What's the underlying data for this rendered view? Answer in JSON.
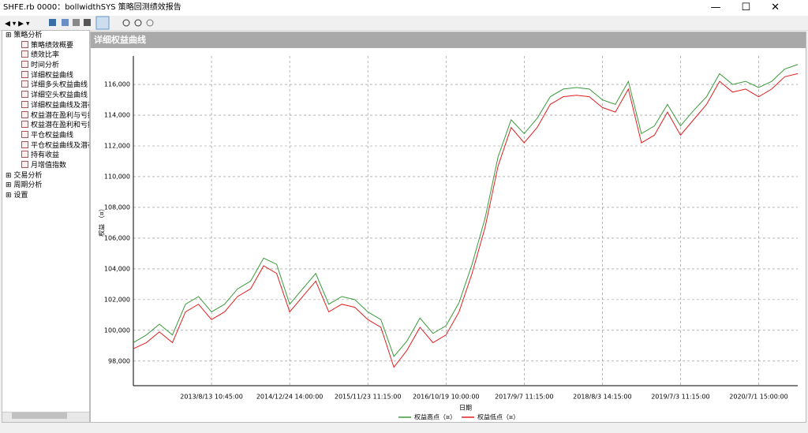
{
  "window": {
    "title": "SHFE.rb 0000：bollwidthSYS 策略回测绩效报告"
  },
  "tree": [
    {
      "label": "策略分析",
      "children": [
        "策略绩效概要",
        "绩效比率",
        "时间分析",
        "详细权益曲线",
        "详细多头权益曲线",
        "详细空头权益曲线",
        "详细权益曲线及潜在",
        "权益潜在盈利与亏损",
        "权益潜在盈利和亏损",
        "平仓权益曲线",
        "平仓权益曲线及潜在",
        "持有收益",
        "月增值指数"
      ]
    },
    {
      "label": "交易分析"
    },
    {
      "label": "周期分析"
    },
    {
      "label": "设置"
    }
  ],
  "panel": {
    "title": "详细权益曲线"
  },
  "chart_data": {
    "type": "line",
    "x_label": "日期",
    "y_label": "权益 （¤）",
    "categories": [
      null,
      null,
      null,
      null,
      null,
      null,
      "2013/8/13 10:45:00",
      null,
      null,
      null,
      null,
      null,
      "2014/12/24 14:00:00",
      null,
      null,
      null,
      null,
      null,
      "2015/11/23 11:15:00",
      null,
      null,
      null,
      null,
      null,
      "2016/10/19 10:00:00",
      null,
      null,
      null,
      null,
      null,
      "2017/9/7 11:15:00",
      null,
      null,
      null,
      null,
      null,
      "2018/8/3 14:15:00",
      null,
      null,
      null,
      null,
      null,
      "2019/7/3 11:15:00",
      null,
      null,
      null,
      null,
      null,
      "2020/7/1 15:00:00",
      null,
      null,
      null
    ],
    "series": [
      {
        "name": "权益高点（¤）",
        "color": "#3c9a3c",
        "values": [
          99200,
          99700,
          100400,
          99700,
          101700,
          102200,
          101200,
          101700,
          102700,
          103200,
          104700,
          104300,
          101700,
          102700,
          103700,
          101700,
          102200,
          102000,
          101200,
          100700,
          98300,
          99300,
          100800,
          99800,
          100300,
          101800,
          104300,
          107300,
          111300,
          113700,
          112800,
          113800,
          115200,
          115700,
          115800,
          115700,
          115000,
          114700,
          116200,
          112800,
          113300,
          114700,
          113300,
          114300,
          115200,
          116700,
          116000,
          116200,
          115800,
          116200,
          117000,
          117300
        ]
      },
      {
        "name": "权益低点（¤）",
        "color": "#e02020",
        "values": [
          98800,
          99200,
          99900,
          99200,
          101200,
          101700,
          100700,
          101200,
          102200,
          102700,
          104200,
          103700,
          101200,
          102200,
          103200,
          101200,
          101700,
          101500,
          100700,
          100200,
          97600,
          98700,
          100200,
          99200,
          99700,
          101200,
          103700,
          106700,
          110700,
          113200,
          112200,
          113200,
          114700,
          115200,
          115300,
          115200,
          114500,
          114200,
          115700,
          112200,
          112700,
          114200,
          112700,
          113700,
          114700,
          116200,
          115500,
          115700,
          115200,
          115700,
          116500,
          116700
        ]
      }
    ],
    "ylim": [
      96400,
      117850
    ],
    "yticks": [
      {
        "value": 98000,
        "label": "98,000"
      },
      {
        "value": 100000,
        "label": "100,000"
      },
      {
        "value": 102000,
        "label": "102,000"
      },
      {
        "value": 104000,
        "label": "104,000"
      },
      {
        "value": 106000,
        "label": "106,000"
      },
      {
        "value": 108000,
        "label": "108,000"
      },
      {
        "value": 110000,
        "label": "110,000"
      },
      {
        "value": 112000,
        "label": "112,000"
      },
      {
        "value": 114000,
        "label": "114,000"
      },
      {
        "value": 116000,
        "label": "116,000"
      }
    ],
    "grid": true
  }
}
